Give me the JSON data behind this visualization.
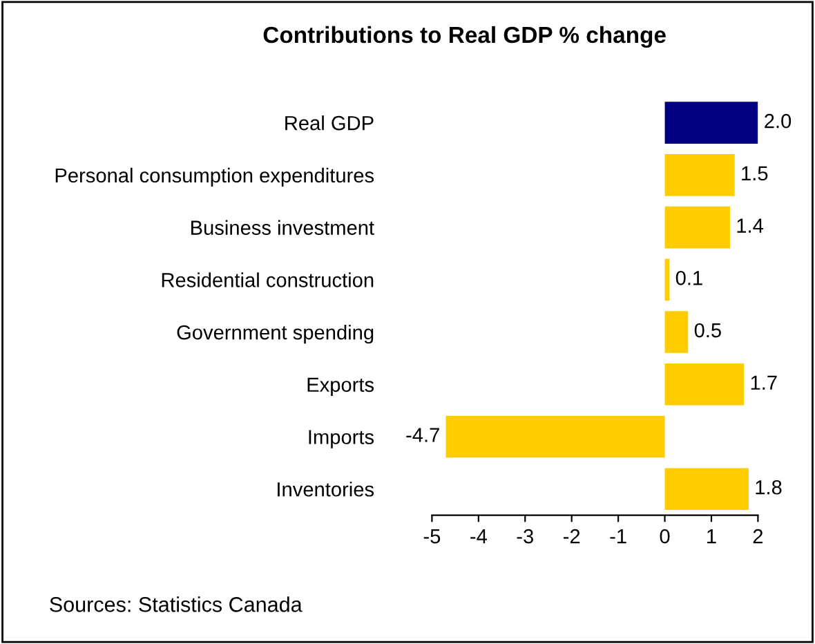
{
  "chart_data": {
    "type": "bar",
    "orientation": "horizontal",
    "title": "Contributions to Real GDP % change",
    "categories": [
      "Real GDP",
      "Personal consumption expenditures",
      "Business investment",
      "Residential construction",
      "Government spending",
      "Exports",
      "Imports",
      "Inventories"
    ],
    "values": [
      2.0,
      1.5,
      1.4,
      0.1,
      0.5,
      1.7,
      -4.7,
      1.8
    ],
    "colors": [
      "#000080",
      "#ffcc00",
      "#ffcc00",
      "#ffcc00",
      "#ffcc00",
      "#ffcc00",
      "#ffcc00",
      "#ffcc00"
    ],
    "value_labels": [
      "2.0",
      "1.5",
      "1.4",
      "0.1",
      "0.5",
      "1.7",
      "-4.7",
      "1.8"
    ],
    "xlim": [
      -5,
      2
    ],
    "xticks": [
      -5,
      -4,
      -3,
      -2,
      -1,
      0,
      1,
      2
    ],
    "grid": false,
    "legend": false,
    "annotations": [
      "Sources: Statistics Canada"
    ]
  }
}
